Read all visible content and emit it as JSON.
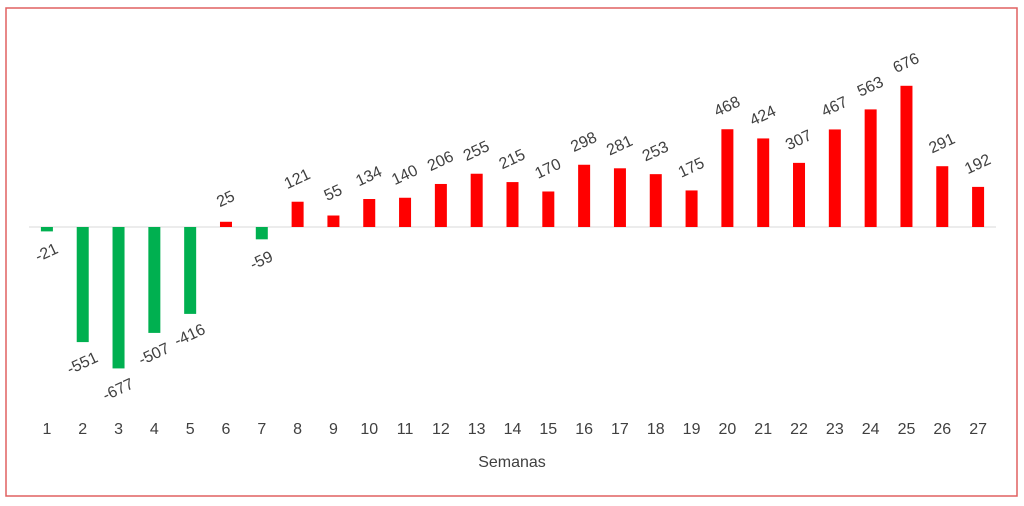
{
  "chart_data": {
    "type": "bar",
    "x_label": "Semanas",
    "categories": [
      "1",
      "2",
      "3",
      "4",
      "5",
      "6",
      "7",
      "8",
      "9",
      "10",
      "11",
      "12",
      "13",
      "14",
      "15",
      "16",
      "17",
      "18",
      "19",
      "20",
      "21",
      "22",
      "23",
      "24",
      "25",
      "26",
      "27"
    ],
    "values": [
      -21,
      -551,
      -677,
      -507,
      -416,
      25,
      -59,
      121,
      55,
      134,
      140,
      206,
      255,
      215,
      170,
      298,
      281,
      253,
      175,
      468,
      424,
      307,
      467,
      563,
      676,
      291,
      192
    ],
    "positive_color": "#ff0000",
    "negative_color": "#00b050",
    "ylim": [
      -900,
      900
    ]
  }
}
